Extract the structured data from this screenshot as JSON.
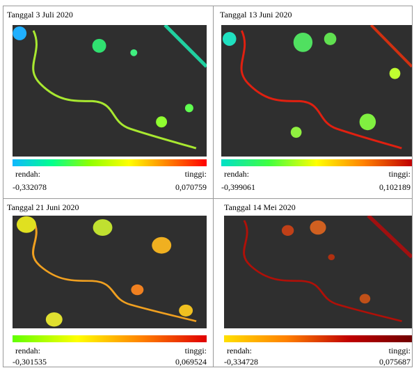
{
  "panels": [
    {
      "title": "Tanggal 3 Juli 2020",
      "low_label": "rendah:",
      "low_value": "-0,332078",
      "high_label": "tinggi:",
      "high_value": "0,070759"
    },
    {
      "title": "Tanggal 13 Juni 2020",
      "low_label": "rendah:",
      "low_value": "-0,399061",
      "high_label": "tinggi:",
      "high_value": "0,102189"
    },
    {
      "title": "Tanggal 21 Juni 2020",
      "low_label": "rendah:",
      "low_value": "-0,301535",
      "high_label": "tinggi:",
      "high_value": "0,069524"
    },
    {
      "title": "Tanggal 14 Mei 2020",
      "low_label": "rendah:",
      "low_value": "-0,334728",
      "high_label": "tinggi:",
      "high_value": "0,075687"
    }
  ]
}
